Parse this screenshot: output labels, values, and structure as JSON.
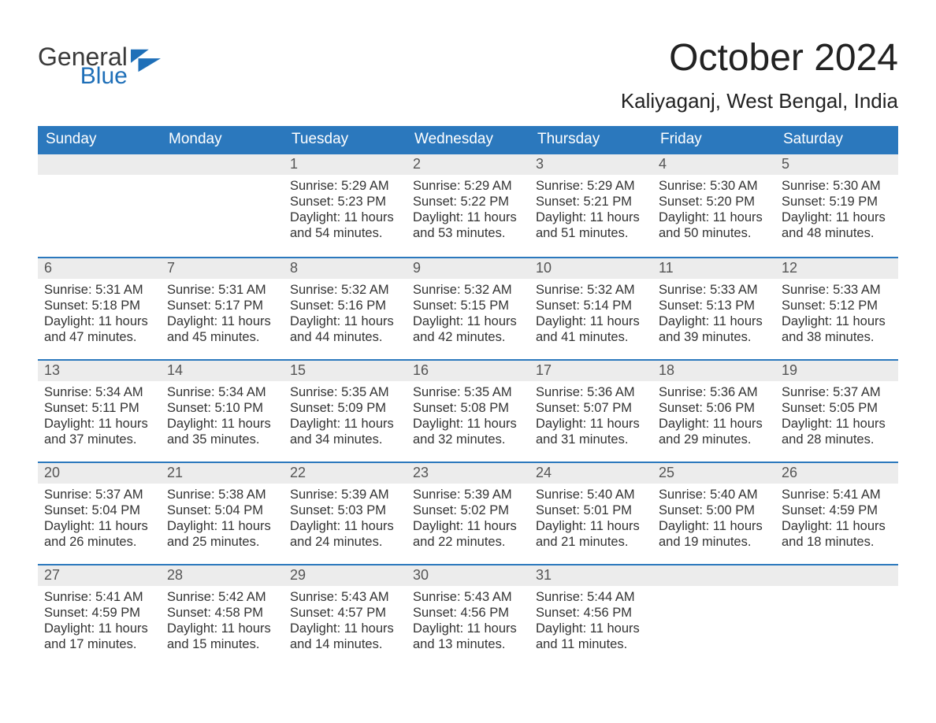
{
  "brand": {
    "name_part1": "General",
    "name_part2": "Blue",
    "color_text": "#3a3a3a",
    "color_accent": "#1e6fb8"
  },
  "title": "October 2024",
  "location": "Kaliyaganj, West Bengal, India",
  "colors": {
    "header_bg": "#2b78bd",
    "header_text": "#ffffff",
    "daynum_bg": "#ececec",
    "daynum_text": "#555555",
    "body_text": "#333333",
    "page_bg": "#ffffff",
    "row_border": "#2b78bd"
  },
  "fonts": {
    "title_size_pt": 36,
    "location_size_pt": 20,
    "header_size_pt": 14,
    "daynum_size_pt": 14,
    "body_size_pt": 12
  },
  "weekdays": [
    "Sunday",
    "Monday",
    "Tuesday",
    "Wednesday",
    "Thursday",
    "Friday",
    "Saturday"
  ],
  "weeks": [
    [
      null,
      null,
      {
        "n": "1",
        "sunrise": "Sunrise: 5:29 AM",
        "sunset": "Sunset: 5:23 PM",
        "daylight": "Daylight: 11 hours and 54 minutes."
      },
      {
        "n": "2",
        "sunrise": "Sunrise: 5:29 AM",
        "sunset": "Sunset: 5:22 PM",
        "daylight": "Daylight: 11 hours and 53 minutes."
      },
      {
        "n": "3",
        "sunrise": "Sunrise: 5:29 AM",
        "sunset": "Sunset: 5:21 PM",
        "daylight": "Daylight: 11 hours and 51 minutes."
      },
      {
        "n": "4",
        "sunrise": "Sunrise: 5:30 AM",
        "sunset": "Sunset: 5:20 PM",
        "daylight": "Daylight: 11 hours and 50 minutes."
      },
      {
        "n": "5",
        "sunrise": "Sunrise: 5:30 AM",
        "sunset": "Sunset: 5:19 PM",
        "daylight": "Daylight: 11 hours and 48 minutes."
      }
    ],
    [
      {
        "n": "6",
        "sunrise": "Sunrise: 5:31 AM",
        "sunset": "Sunset: 5:18 PM",
        "daylight": "Daylight: 11 hours and 47 minutes."
      },
      {
        "n": "7",
        "sunrise": "Sunrise: 5:31 AM",
        "sunset": "Sunset: 5:17 PM",
        "daylight": "Daylight: 11 hours and 45 minutes."
      },
      {
        "n": "8",
        "sunrise": "Sunrise: 5:32 AM",
        "sunset": "Sunset: 5:16 PM",
        "daylight": "Daylight: 11 hours and 44 minutes."
      },
      {
        "n": "9",
        "sunrise": "Sunrise: 5:32 AM",
        "sunset": "Sunset: 5:15 PM",
        "daylight": "Daylight: 11 hours and 42 minutes."
      },
      {
        "n": "10",
        "sunrise": "Sunrise: 5:32 AM",
        "sunset": "Sunset: 5:14 PM",
        "daylight": "Daylight: 11 hours and 41 minutes."
      },
      {
        "n": "11",
        "sunrise": "Sunrise: 5:33 AM",
        "sunset": "Sunset: 5:13 PM",
        "daylight": "Daylight: 11 hours and 39 minutes."
      },
      {
        "n": "12",
        "sunrise": "Sunrise: 5:33 AM",
        "sunset": "Sunset: 5:12 PM",
        "daylight": "Daylight: 11 hours and 38 minutes."
      }
    ],
    [
      {
        "n": "13",
        "sunrise": "Sunrise: 5:34 AM",
        "sunset": "Sunset: 5:11 PM",
        "daylight": "Daylight: 11 hours and 37 minutes."
      },
      {
        "n": "14",
        "sunrise": "Sunrise: 5:34 AM",
        "sunset": "Sunset: 5:10 PM",
        "daylight": "Daylight: 11 hours and 35 minutes."
      },
      {
        "n": "15",
        "sunrise": "Sunrise: 5:35 AM",
        "sunset": "Sunset: 5:09 PM",
        "daylight": "Daylight: 11 hours and 34 minutes."
      },
      {
        "n": "16",
        "sunrise": "Sunrise: 5:35 AM",
        "sunset": "Sunset: 5:08 PM",
        "daylight": "Daylight: 11 hours and 32 minutes."
      },
      {
        "n": "17",
        "sunrise": "Sunrise: 5:36 AM",
        "sunset": "Sunset: 5:07 PM",
        "daylight": "Daylight: 11 hours and 31 minutes."
      },
      {
        "n": "18",
        "sunrise": "Sunrise: 5:36 AM",
        "sunset": "Sunset: 5:06 PM",
        "daylight": "Daylight: 11 hours and 29 minutes."
      },
      {
        "n": "19",
        "sunrise": "Sunrise: 5:37 AM",
        "sunset": "Sunset: 5:05 PM",
        "daylight": "Daylight: 11 hours and 28 minutes."
      }
    ],
    [
      {
        "n": "20",
        "sunrise": "Sunrise: 5:37 AM",
        "sunset": "Sunset: 5:04 PM",
        "daylight": "Daylight: 11 hours and 26 minutes."
      },
      {
        "n": "21",
        "sunrise": "Sunrise: 5:38 AM",
        "sunset": "Sunset: 5:04 PM",
        "daylight": "Daylight: 11 hours and 25 minutes."
      },
      {
        "n": "22",
        "sunrise": "Sunrise: 5:39 AM",
        "sunset": "Sunset: 5:03 PM",
        "daylight": "Daylight: 11 hours and 24 minutes."
      },
      {
        "n": "23",
        "sunrise": "Sunrise: 5:39 AM",
        "sunset": "Sunset: 5:02 PM",
        "daylight": "Daylight: 11 hours and 22 minutes."
      },
      {
        "n": "24",
        "sunrise": "Sunrise: 5:40 AM",
        "sunset": "Sunset: 5:01 PM",
        "daylight": "Daylight: 11 hours and 21 minutes."
      },
      {
        "n": "25",
        "sunrise": "Sunrise: 5:40 AM",
        "sunset": "Sunset: 5:00 PM",
        "daylight": "Daylight: 11 hours and 19 minutes."
      },
      {
        "n": "26",
        "sunrise": "Sunrise: 5:41 AM",
        "sunset": "Sunset: 4:59 PM",
        "daylight": "Daylight: 11 hours and 18 minutes."
      }
    ],
    [
      {
        "n": "27",
        "sunrise": "Sunrise: 5:41 AM",
        "sunset": "Sunset: 4:59 PM",
        "daylight": "Daylight: 11 hours and 17 minutes."
      },
      {
        "n": "28",
        "sunrise": "Sunrise: 5:42 AM",
        "sunset": "Sunset: 4:58 PM",
        "daylight": "Daylight: 11 hours and 15 minutes."
      },
      {
        "n": "29",
        "sunrise": "Sunrise: 5:43 AM",
        "sunset": "Sunset: 4:57 PM",
        "daylight": "Daylight: 11 hours and 14 minutes."
      },
      {
        "n": "30",
        "sunrise": "Sunrise: 5:43 AM",
        "sunset": "Sunset: 4:56 PM",
        "daylight": "Daylight: 11 hours and 13 minutes."
      },
      {
        "n": "31",
        "sunrise": "Sunrise: 5:44 AM",
        "sunset": "Sunset: 4:56 PM",
        "daylight": "Daylight: 11 hours and 11 minutes."
      },
      null,
      null
    ]
  ]
}
